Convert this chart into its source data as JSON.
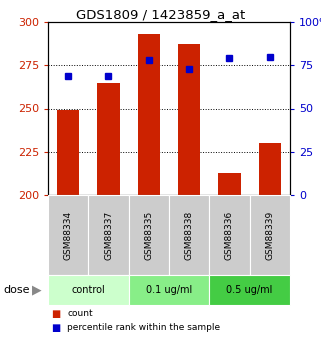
{
  "title": "GDS1809 / 1423859_a_at",
  "categories": [
    "GSM88334",
    "GSM88337",
    "GSM88335",
    "GSM88338",
    "GSM88336",
    "GSM88339"
  ],
  "bar_values": [
    249,
    265,
    293,
    287,
    213,
    230
  ],
  "percentile_values": [
    69,
    69,
    78,
    73,
    79,
    80
  ],
  "bar_color": "#cc2200",
  "dot_color": "#0000cc",
  "ylim_left": [
    200,
    300
  ],
  "ylim_right": [
    0,
    100
  ],
  "yticks_left": [
    200,
    225,
    250,
    275,
    300
  ],
  "yticks_right": [
    0,
    25,
    50,
    75,
    100
  ],
  "ytick_labels_left": [
    "200",
    "225",
    "250",
    "275",
    "300"
  ],
  "ytick_labels_right": [
    "0",
    "25",
    "50",
    "75",
    "100%"
  ],
  "groups": [
    {
      "label": "control",
      "indices": [
        0,
        1
      ],
      "color": "#ccffcc"
    },
    {
      "label": "0.1 ug/ml",
      "indices": [
        2,
        3
      ],
      "color": "#88ee88"
    },
    {
      "label": "0.5 ug/ml",
      "indices": [
        4,
        5
      ],
      "color": "#44cc44"
    }
  ],
  "legend_items": [
    {
      "label": "count",
      "color": "#cc2200"
    },
    {
      "label": "percentile rank within the sample",
      "color": "#0000cc"
    }
  ],
  "left_axis_color": "#cc2200",
  "right_axis_color": "#0000cc",
  "bar_width": 0.55,
  "xticklabel_bg": "#cccccc",
  "grid_yticks": [
    225,
    250,
    275
  ]
}
